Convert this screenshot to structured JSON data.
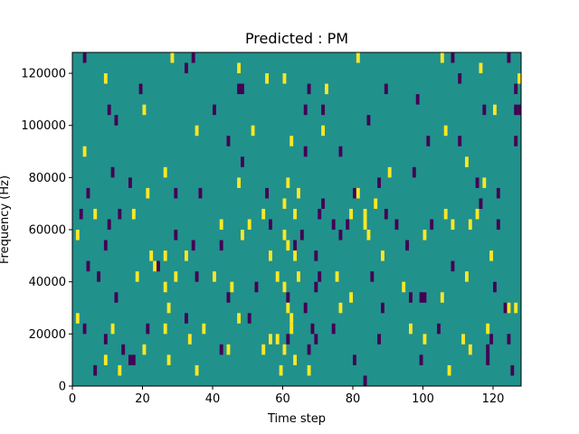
{
  "chart_data": {
    "type": "heatmap",
    "title": "Predicted : PM",
    "xlabel": "Time step",
    "ylabel": "Frequency (Hz)",
    "xlim": [
      0,
      128
    ],
    "ylim": [
      0,
      128000
    ],
    "xticks": [
      0,
      20,
      40,
      60,
      80,
      100,
      120
    ],
    "xtick_labels": [
      "0",
      "20",
      "40",
      "60",
      "80",
      "100",
      "120"
    ],
    "yticks": [
      0,
      20000,
      40000,
      60000,
      80000,
      100000,
      120000
    ],
    "ytick_labels": [
      "0",
      "20000",
      "40000",
      "60000",
      "80000",
      "100000",
      "120000"
    ],
    "grid": false,
    "colormap": "viridis",
    "colors": {
      "background": "#21918c",
      "low": "#440154",
      "high": "#fde725"
    },
    "cell_time_width": 1,
    "cell_freq_height": 4000,
    "low_cells": [
      [
        3,
        124000
      ],
      [
        34,
        124000
      ],
      [
        60,
        128000
      ],
      [
        108,
        124000
      ],
      [
        118,
        128000
      ],
      [
        124,
        124000
      ],
      [
        47,
        112000
      ],
      [
        48,
        112000
      ],
      [
        67,
        112000
      ],
      [
        89,
        112000
      ],
      [
        98,
        108000
      ],
      [
        110,
        116000
      ],
      [
        126,
        112000
      ],
      [
        19,
        112000
      ],
      [
        32,
        120000
      ],
      [
        12,
        100000
      ],
      [
        10,
        104000
      ],
      [
        40,
        104000
      ],
      [
        66,
        104000
      ],
      [
        71,
        104000
      ],
      [
        84,
        100000
      ],
      [
        117,
        104000
      ],
      [
        127,
        104000
      ],
      [
        126,
        104000
      ],
      [
        44,
        92000
      ],
      [
        66,
        88000
      ],
      [
        48,
        84000
      ],
      [
        76,
        88000
      ],
      [
        101,
        92000
      ],
      [
        110,
        92000
      ],
      [
        126,
        92000
      ],
      [
        11,
        80000
      ],
      [
        16,
        76000
      ],
      [
        29,
        72000
      ],
      [
        36,
        72000
      ],
      [
        55,
        72000
      ],
      [
        71,
        68000
      ],
      [
        80,
        72000
      ],
      [
        87,
        76000
      ],
      [
        97,
        80000
      ],
      [
        115,
        76000
      ],
      [
        121,
        72000
      ],
      [
        4,
        72000
      ],
      [
        2,
        64000
      ],
      [
        10,
        60000
      ],
      [
        13,
        64000
      ],
      [
        9,
        52000
      ],
      [
        29,
        56000
      ],
      [
        34,
        52000
      ],
      [
        56,
        60000
      ],
      [
        63,
        52000
      ],
      [
        65,
        56000
      ],
      [
        70,
        64000
      ],
      [
        74,
        60000
      ],
      [
        76,
        56000
      ],
      [
        78,
        60000
      ],
      [
        89,
        64000
      ],
      [
        92,
        60000
      ],
      [
        95,
        52000
      ],
      [
        102,
        60000
      ],
      [
        116,
        68000
      ],
      [
        121,
        60000
      ],
      [
        4,
        44000
      ],
      [
        7,
        40000
      ],
      [
        12,
        32000
      ],
      [
        24,
        44000
      ],
      [
        35,
        40000
      ],
      [
        44,
        32000
      ],
      [
        52,
        36000
      ],
      [
        66,
        28000
      ],
      [
        69,
        48000
      ],
      [
        70,
        40000
      ],
      [
        69,
        36000
      ],
      [
        68,
        20000
      ],
      [
        85,
        40000
      ],
      [
        88,
        28000
      ],
      [
        96,
        32000
      ],
      [
        99,
        32000
      ],
      [
        100,
        32000
      ],
      [
        108,
        44000
      ],
      [
        120,
        36000
      ],
      [
        123,
        28000
      ],
      [
        3,
        20000
      ],
      [
        9,
        16000
      ],
      [
        14,
        12000
      ],
      [
        21,
        20000
      ],
      [
        16,
        8000
      ],
      [
        17,
        8000
      ],
      [
        32,
        24000
      ],
      [
        42,
        12000
      ],
      [
        50,
        24000
      ],
      [
        61,
        16000
      ],
      [
        67,
        12000
      ],
      [
        69,
        16000
      ],
      [
        74,
        20000
      ],
      [
        80,
        8000
      ],
      [
        87,
        16000
      ],
      [
        99,
        8000
      ],
      [
        104,
        20000
      ],
      [
        118,
        12000
      ],
      [
        119,
        16000
      ],
      [
        124,
        16000
      ],
      [
        83,
        0
      ],
      [
        6,
        4000
      ],
      [
        118,
        8000
      ],
      [
        125,
        4000
      ],
      [
        42,
        52000
      ],
      [
        61,
        32000
      ]
    ],
    "high_cells": [
      [
        28,
        124000
      ],
      [
        37,
        128000
      ],
      [
        47,
        120000
      ],
      [
        55,
        116000
      ],
      [
        60,
        116000
      ],
      [
        72,
        112000
      ],
      [
        81,
        124000
      ],
      [
        105,
        124000
      ],
      [
        116,
        120000
      ],
      [
        127,
        116000
      ],
      [
        9,
        116000
      ],
      [
        20,
        104000
      ],
      [
        35,
        96000
      ],
      [
        51,
        96000
      ],
      [
        62,
        92000
      ],
      [
        71,
        96000
      ],
      [
        106,
        96000
      ],
      [
        120,
        104000
      ],
      [
        3,
        88000
      ],
      [
        26,
        80000
      ],
      [
        47,
        76000
      ],
      [
        61,
        76000
      ],
      [
        64,
        72000
      ],
      [
        81,
        72000
      ],
      [
        90,
        80000
      ],
      [
        112,
        84000
      ],
      [
        117,
        76000
      ],
      [
        21,
        72000
      ],
      [
        6,
        64000
      ],
      [
        17,
        64000
      ],
      [
        42,
        60000
      ],
      [
        48,
        56000
      ],
      [
        50,
        60000
      ],
      [
        54,
        64000
      ],
      [
        60,
        68000
      ],
      [
        63,
        64000
      ],
      [
        60,
        56000
      ],
      [
        61,
        52000
      ],
      [
        79,
        64000
      ],
      [
        83,
        60000
      ],
      [
        84,
        56000
      ],
      [
        83,
        64000
      ],
      [
        86,
        68000
      ],
      [
        100,
        56000
      ],
      [
        106,
        64000
      ],
      [
        108,
        60000
      ],
      [
        113,
        60000
      ],
      [
        115,
        64000
      ],
      [
        1,
        56000
      ],
      [
        18,
        40000
      ],
      [
        22,
        48000
      ],
      [
        23,
        44000
      ],
      [
        26,
        36000
      ],
      [
        26,
        48000
      ],
      [
        27,
        28000
      ],
      [
        29,
        40000
      ],
      [
        32,
        48000
      ],
      [
        40,
        40000
      ],
      [
        45,
        36000
      ],
      [
        56,
        48000
      ],
      [
        58,
        40000
      ],
      [
        60,
        36000
      ],
      [
        61,
        28000
      ],
      [
        62,
        24000
      ],
      [
        64,
        40000
      ],
      [
        63,
        48000
      ],
      [
        75,
        40000
      ],
      [
        79,
        32000
      ],
      [
        88,
        48000
      ],
      [
        94,
        36000
      ],
      [
        105,
        32000
      ],
      [
        112,
        40000
      ],
      [
        119,
        48000
      ],
      [
        126,
        28000
      ],
      [
        1,
        24000
      ],
      [
        11,
        20000
      ],
      [
        20,
        12000
      ],
      [
        26,
        20000
      ],
      [
        33,
        16000
      ],
      [
        37,
        20000
      ],
      [
        44,
        12000
      ],
      [
        47,
        24000
      ],
      [
        54,
        12000
      ],
      [
        56,
        16000
      ],
      [
        58,
        16000
      ],
      [
        59,
        4000
      ],
      [
        60,
        12000
      ],
      [
        62,
        20000
      ],
      [
        63,
        8000
      ],
      [
        67,
        4000
      ],
      [
        76,
        28000
      ],
      [
        96,
        20000
      ],
      [
        100,
        16000
      ],
      [
        107,
        4000
      ],
      [
        111,
        16000
      ],
      [
        113,
        12000
      ],
      [
        118,
        20000
      ],
      [
        124,
        28000
      ],
      [
        9,
        8000
      ],
      [
        13,
        4000
      ],
      [
        35,
        4000
      ],
      [
        27,
        8000
      ]
    ]
  }
}
